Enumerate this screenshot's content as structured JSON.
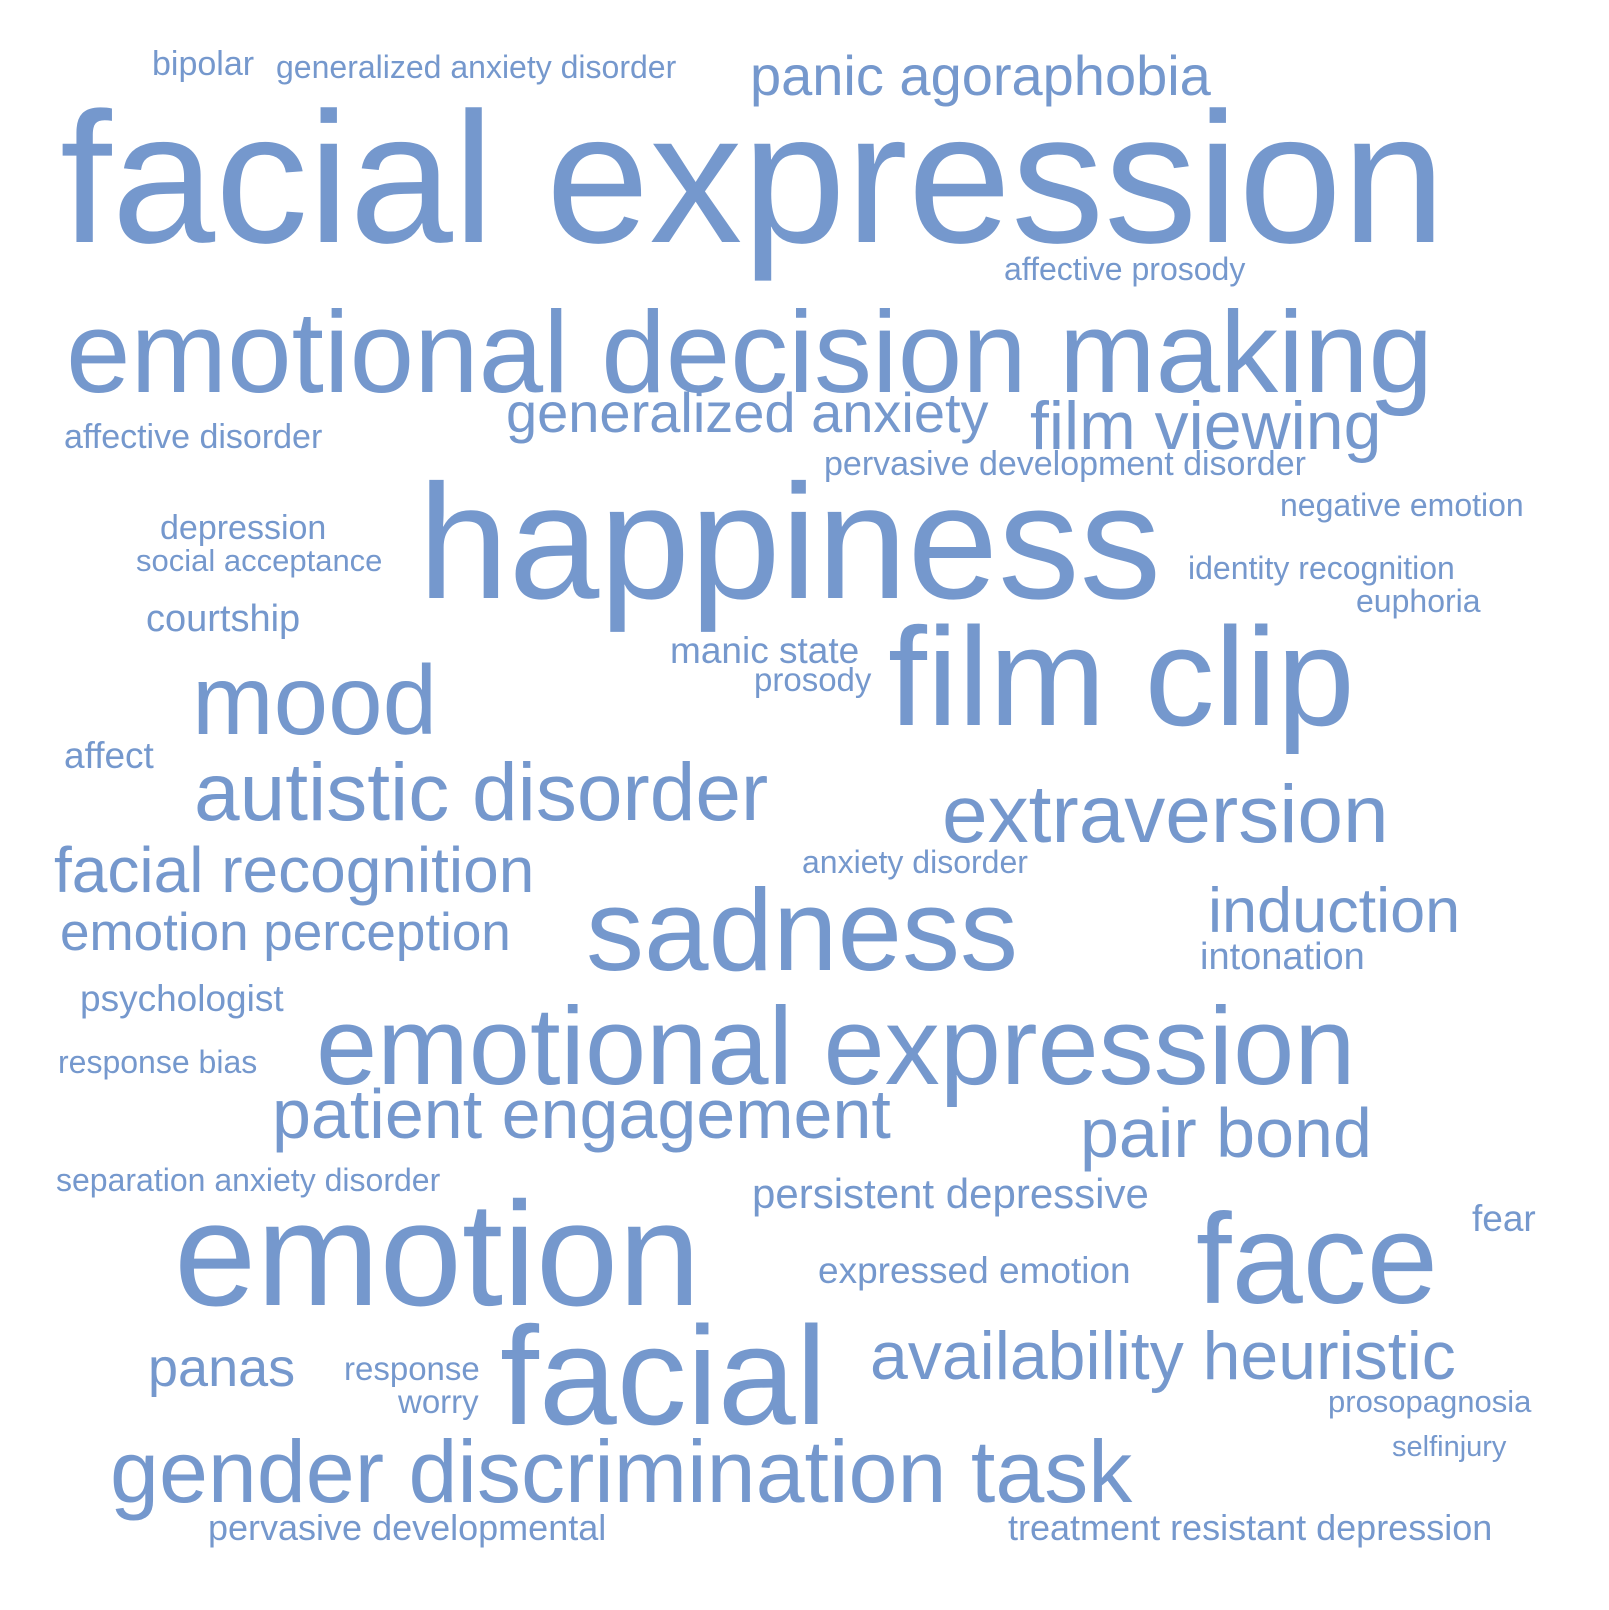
{
  "style": {
    "background": "#ffffff",
    "word_color": "#7598cd"
  },
  "words": [
    {
      "text": "bipolar"
    },
    {
      "text": "generalized anxiety disorder"
    },
    {
      "text": "panic agoraphobia"
    },
    {
      "text": "facial expression"
    },
    {
      "text": "affective prosody"
    },
    {
      "text": "emotional decision making"
    },
    {
      "text": "generalized anxiety"
    },
    {
      "text": "film viewing"
    },
    {
      "text": "affective disorder"
    },
    {
      "text": "pervasive development disorder"
    },
    {
      "text": "negative emotion"
    },
    {
      "text": "happiness"
    },
    {
      "text": "depression"
    },
    {
      "text": "social acceptance"
    },
    {
      "text": "identity recognition"
    },
    {
      "text": "euphoria"
    },
    {
      "text": "courtship"
    },
    {
      "text": "manic state"
    },
    {
      "text": "prosody"
    },
    {
      "text": "film clip"
    },
    {
      "text": "mood"
    },
    {
      "text": "affect"
    },
    {
      "text": "autistic disorder"
    },
    {
      "text": "extraversion"
    },
    {
      "text": "facial recognition"
    },
    {
      "text": "anxiety disorder"
    },
    {
      "text": "induction"
    },
    {
      "text": "sadness"
    },
    {
      "text": "emotion perception"
    },
    {
      "text": "intonation"
    },
    {
      "text": "psychologist"
    },
    {
      "text": "emotional expression"
    },
    {
      "text": "response bias"
    },
    {
      "text": "patient engagement"
    },
    {
      "text": "pair bond"
    },
    {
      "text": "separation anxiety disorder"
    },
    {
      "text": "persistent depressive"
    },
    {
      "text": "fear"
    },
    {
      "text": "emotion"
    },
    {
      "text": "face"
    },
    {
      "text": "expressed emotion"
    },
    {
      "text": "facial"
    },
    {
      "text": "availability heuristic"
    },
    {
      "text": "panas"
    },
    {
      "text": "response"
    },
    {
      "text": "worry"
    },
    {
      "text": "prosopagnosia"
    },
    {
      "text": "selfinjury"
    },
    {
      "text": "gender discrimination task"
    },
    {
      "text": "pervasive developmental"
    },
    {
      "text": "treatment resistant depression"
    }
  ]
}
